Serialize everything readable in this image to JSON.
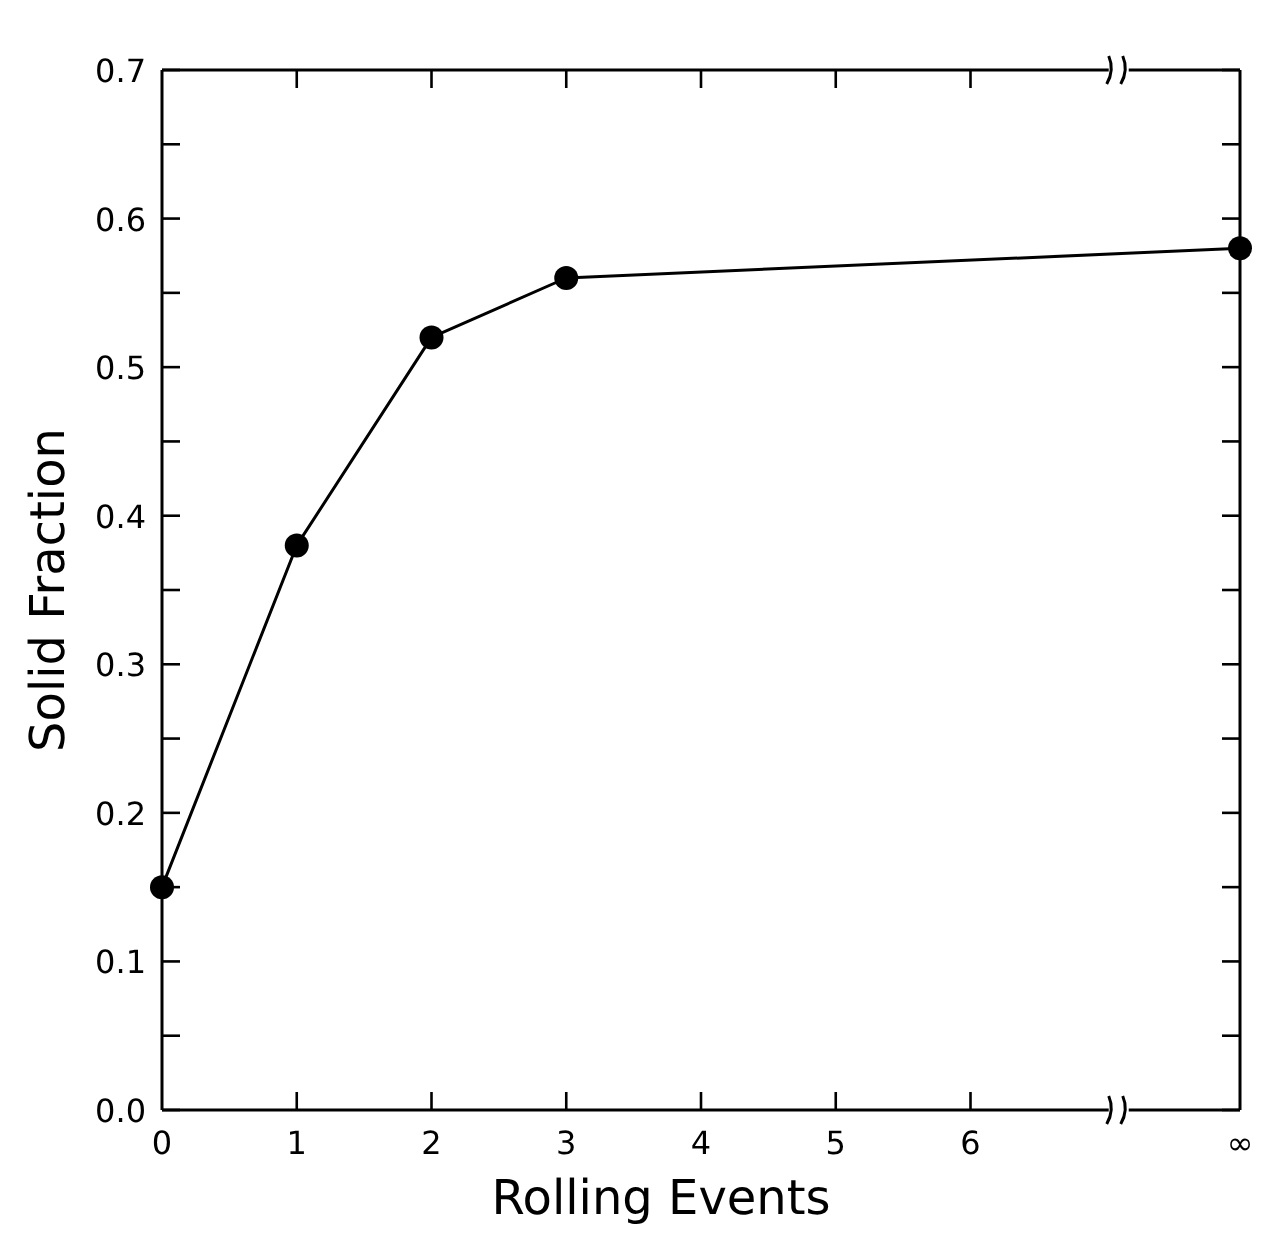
{
  "chart_data": {
    "type": "line",
    "xlabel": "Rolling Events",
    "ylabel": "Solid Fraction",
    "x": [
      0,
      1,
      2,
      3,
      8
    ],
    "series": [
      {
        "color": "#000000",
        "values": [
          0.15,
          0.38,
          0.52,
          0.56,
          0.58
        ]
      }
    ],
    "xlim": [
      0,
      8
    ],
    "xticks": [
      0,
      1,
      2,
      3,
      4,
      5,
      6,
      {
        "value": 8,
        "label": "∞"
      }
    ],
    "ylim": [
      0,
      0.7
    ],
    "yticks": [
      {
        "value": 0,
        "label": "0.0"
      },
      {
        "value": 0.05,
        "label": null
      },
      {
        "value": 0.1,
        "label": "0.1"
      },
      {
        "value": 0.15,
        "label": null
      },
      {
        "value": 0.2,
        "label": "0.2"
      },
      {
        "value": 0.25,
        "label": null
      },
      {
        "value": 0.3,
        "label": "0.3"
      },
      {
        "value": 0.35,
        "label": null
      },
      {
        "value": 0.4,
        "label": "0.4"
      },
      {
        "value": 0.45,
        "label": null
      },
      {
        "value": 0.5,
        "label": "0.5"
      },
      {
        "value": 0.55,
        "label": null
      },
      {
        "value": 0.6,
        "label": "0.6"
      },
      {
        "value": 0.65,
        "label": null
      },
      {
        "value": 0.7,
        "label": "0.7"
      }
    ],
    "marker": "circle",
    "line_style": "solid"
  }
}
